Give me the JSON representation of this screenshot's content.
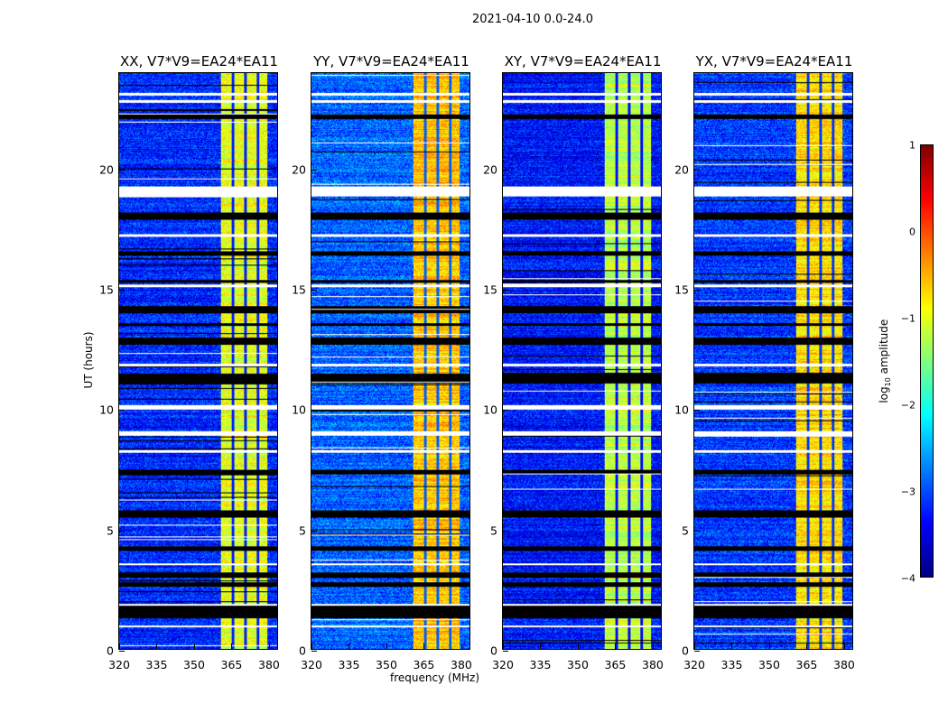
{
  "chart_data": {
    "type": "heatmap",
    "title": "2021-04-10 0.0-24.0",
    "xlabel": "frequency (MHz)",
    "ylabel": "UT (hours)",
    "xlim": [
      320,
      384
    ],
    "ylim": [
      0,
      24
    ],
    "xticks": [
      "320",
      "335",
      "350",
      "365",
      "380"
    ],
    "yticks": [
      "0",
      "5",
      "10",
      "15",
      "20"
    ],
    "colorbar": {
      "label_prefix": "log",
      "label_sub": "10",
      "label_suffix": " amplitude",
      "range": [
        -4,
        1
      ],
      "ticks": [
        "1",
        "0",
        "−1",
        "−2",
        "−3",
        "−4"
      ],
      "cmap": "jet"
    },
    "panels": [
      {
        "title": "XX, V7*V9=EA24*EA11",
        "background_level": -3.2,
        "band_level": -1.0
      },
      {
        "title": "YY, V7*V9=EA24*EA11",
        "background_level": -2.9,
        "band_level": -0.6
      },
      {
        "title": "XY, V7*V9=EA24*EA11",
        "background_level": -3.3,
        "band_level": -1.2
      },
      {
        "title": "YX, V7*V9=EA24*EA11",
        "background_level": -3.1,
        "band_level": -0.7
      }
    ],
    "bright_band_mhz": [
      361,
      380
    ],
    "band_gaps_mhz": [
      366,
      371,
      376
    ],
    "flagged_white_hours": [
      [
        0.9,
        1.0
      ],
      [
        1.8,
        1.9
      ],
      [
        3.5,
        3.6
      ],
      [
        8.2,
        8.3
      ],
      [
        8.9,
        9.1
      ],
      [
        10.0,
        10.2
      ],
      [
        11.8,
        11.9
      ],
      [
        15.1,
        15.2
      ],
      [
        17.2,
        17.3
      ],
      [
        18.9,
        19.3
      ],
      [
        22.8,
        22.9
      ],
      [
        23.1,
        23.2
      ]
    ],
    "flagged_black_hours": [
      [
        1.3,
        1.8
      ],
      [
        5.5,
        5.8
      ],
      [
        2.6,
        2.8
      ],
      [
        11.1,
        11.5
      ],
      [
        12.7,
        13.0
      ],
      [
        14.0,
        14.3
      ],
      [
        15.3,
        15.4
      ],
      [
        17.9,
        18.2
      ],
      [
        16.4,
        16.6
      ],
      [
        22.1,
        22.3
      ],
      [
        3.0,
        3.2
      ],
      [
        7.3,
        7.5
      ],
      [
        4.1,
        4.3
      ],
      [
        13.5,
        13.6
      ]
    ]
  }
}
